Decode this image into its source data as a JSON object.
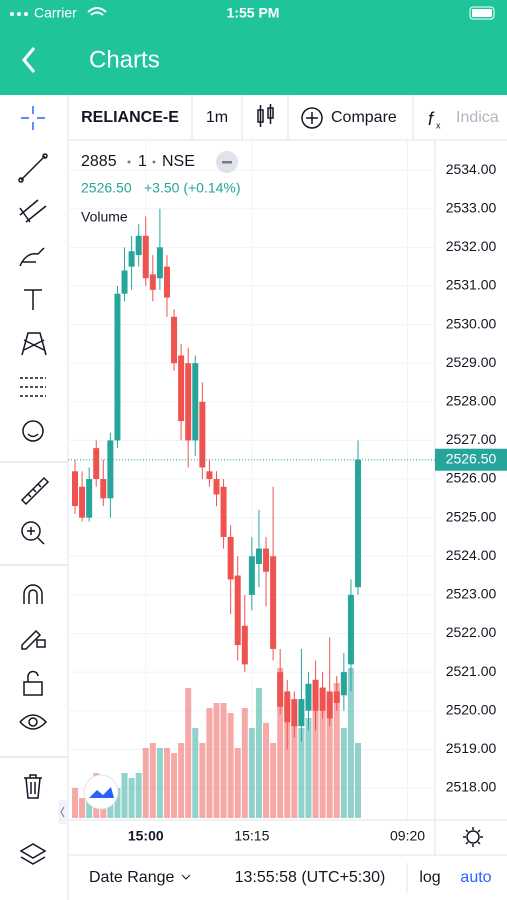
{
  "status_bar": {
    "carrier": "Carrier",
    "time": "1:55 PM"
  },
  "header": {
    "title": "Charts"
  },
  "toolbar": {
    "symbol": "RELIANCE-E",
    "interval": "1m",
    "compare": "Compare",
    "indicators": "Indica"
  },
  "legend": {
    "symbol": "2885",
    "interval": "1",
    "exchange": "NSE",
    "price": "2526.50",
    "change": "+3.50 (+0.14%)",
    "volume": "Volume"
  },
  "bottom_bar": {
    "date_range": "Date Range",
    "clock": "13:55:58 (UTC+5:30)",
    "log": "log",
    "auto": "auto"
  },
  "chart_data": {
    "type": "candlestick",
    "open": [
      2526.2,
      2525.8,
      2525.0,
      2526.8,
      2526.0,
      2525.5,
      2527.0,
      2530.8,
      2531.5,
      2531.8,
      2532.3,
      2531.3,
      2531.2,
      2531.5,
      2530.2,
      2529.2,
      2529.0,
      2527.0,
      2528.0,
      2526.2,
      2526.0,
      2525.8,
      2524.5,
      2523.5,
      2522.2,
      2523.0,
      2523.8,
      2524.2,
      2524.0,
      2521.0,
      2520.5,
      2520.3,
      2519.6,
      2520.0,
      2520.8,
      2520.6,
      2520.5,
      2520.5,
      2520.4,
      2521.2,
      2523.2
    ],
    "high": [
      2526.5,
      2526.2,
      2526.3,
      2527.0,
      2526.5,
      2527.2,
      2531.0,
      2532.0,
      2532.3,
      2532.6,
      2532.8,
      2531.8,
      2533.0,
      2531.8,
      2530.4,
      2529.5,
      2529.4,
      2529.2,
      2528.5,
      2526.5,
      2526.2,
      2526.0,
      2524.8,
      2524.0,
      2523.0,
      2524.5,
      2525.2,
      2524.5,
      2525.8,
      2521.6,
      2520.8,
      2520.5,
      2521.6,
      2521.0,
      2521.3,
      2521.0,
      2521.9,
      2520.9,
      2521.5,
      2523.4,
      2527.0
    ],
    "low": [
      2525.1,
      2524.9,
      2524.9,
      2525.8,
      2525.3,
      2525.0,
      2526.8,
      2530.6,
      2530.9,
      2531.5,
      2531.0,
      2530.6,
      2530.9,
      2530.2,
      2528.8,
      2527.0,
      2526.3,
      2526.6,
      2526.0,
      2525.8,
      2525.3,
      2524.2,
      2522.5,
      2521.3,
      2521.0,
      2522.6,
      2523.2,
      2522.7,
      2521.3,
      2519.9,
      2519.0,
      2519.3,
      2519.2,
      2519.5,
      2519.5,
      2519.8,
      2519.6,
      2520.0,
      2520.0,
      2520.5,
      2523.0
    ],
    "close": [
      2525.3,
      2525.0,
      2526.0,
      2526.0,
      2525.5,
      2527.0,
      2530.8,
      2531.4,
      2531.9,
      2532.3,
      2531.2,
      2530.9,
      2532.0,
      2530.7,
      2529.0,
      2527.5,
      2527.0,
      2529.0,
      2526.3,
      2526.0,
      2525.6,
      2524.5,
      2523.4,
      2521.7,
      2521.2,
      2524.0,
      2524.2,
      2523.6,
      2521.6,
      2520.1,
      2519.7,
      2519.6,
      2520.3,
      2520.7,
      2520.0,
      2520.0,
      2519.8,
      2520.2,
      2521.0,
      2523.0,
      2526.5
    ],
    "volume": [
      30,
      20,
      25,
      45,
      35,
      30,
      30,
      45,
      40,
      45,
      70,
      75,
      70,
      70,
      65,
      75,
      130,
      90,
      75,
      110,
      115,
      115,
      105,
      70,
      110,
      90,
      130,
      95,
      75,
      150,
      120,
      100,
      90,
      100,
      125,
      130,
      125,
      135,
      90,
      150,
      75
    ],
    "up_color": "#26a69a",
    "down_color": "#ef5350",
    "ylim": [
      2517.17,
      2534.78
    ],
    "yticks": [
      {
        "value": 2518,
        "label": "2518.00"
      },
      {
        "value": 2519,
        "label": "2519.00"
      },
      {
        "value": 2520,
        "label": "2520.00"
      },
      {
        "value": 2521,
        "label": "2521.00"
      },
      {
        "value": 2522,
        "label": "2522.00"
      },
      {
        "value": 2523,
        "label": "2523.00"
      },
      {
        "value": 2524,
        "label": "2524.00"
      },
      {
        "value": 2525,
        "label": "2525.00"
      },
      {
        "value": 2526,
        "label": "2526.00"
      },
      {
        "value": 2527,
        "label": "2527.00"
      },
      {
        "value": 2528,
        "label": "2528.00"
      },
      {
        "value": 2529,
        "label": "2529.00"
      },
      {
        "value": 2530,
        "label": "2530.00"
      },
      {
        "value": 2531,
        "label": "2531.00"
      },
      {
        "value": 2532,
        "label": "2532.00"
      },
      {
        "value": 2533,
        "label": "2533.00"
      },
      {
        "value": 2534,
        "label": "2534.00"
      }
    ],
    "xticks": [
      {
        "value": 10,
        "label": "15:00"
      },
      {
        "value": 25,
        "label": "15:15"
      },
      {
        "value": 47,
        "label": "09:20"
      }
    ],
    "last_price": {
      "value": 2526.5,
      "label": "2526.50"
    },
    "grid": true
  }
}
